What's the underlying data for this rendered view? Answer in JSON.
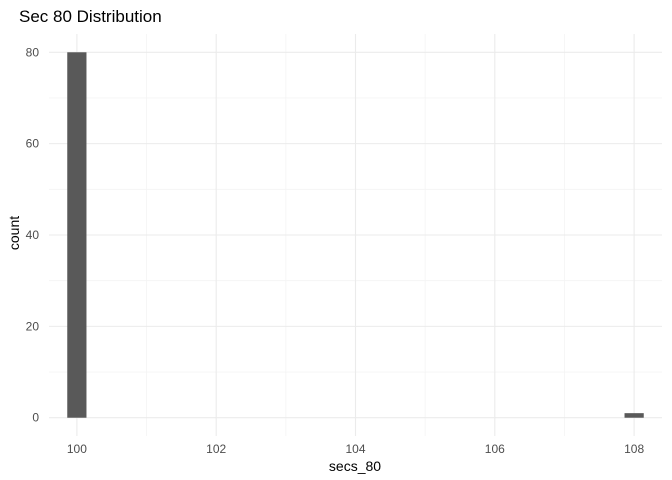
{
  "chart_data": {
    "type": "bar",
    "title": "Sec 80 Distribution",
    "xlabel": "secs_80",
    "ylabel": "count",
    "bins": [
      {
        "x": 100,
        "count": 80
      },
      {
        "x": 108,
        "count": 1
      }
    ],
    "bin_width": 0.2759,
    "xlim": [
      99.6,
      108.4
    ],
    "ylim": [
      -4,
      84
    ],
    "x_ticks": [
      100,
      102,
      104,
      106,
      108
    ],
    "x_minor_ticks": [
      101,
      103,
      105,
      107
    ],
    "y_ticks": [
      0,
      20,
      40,
      60,
      80
    ],
    "y_minor_ticks": [
      10,
      30,
      50,
      70
    ],
    "grid": true,
    "legend": "none",
    "colors": {
      "bar": "#595959",
      "grid_major": "#ebebeb",
      "grid_minor": "#f4f4f4",
      "background": "#ffffff"
    }
  }
}
